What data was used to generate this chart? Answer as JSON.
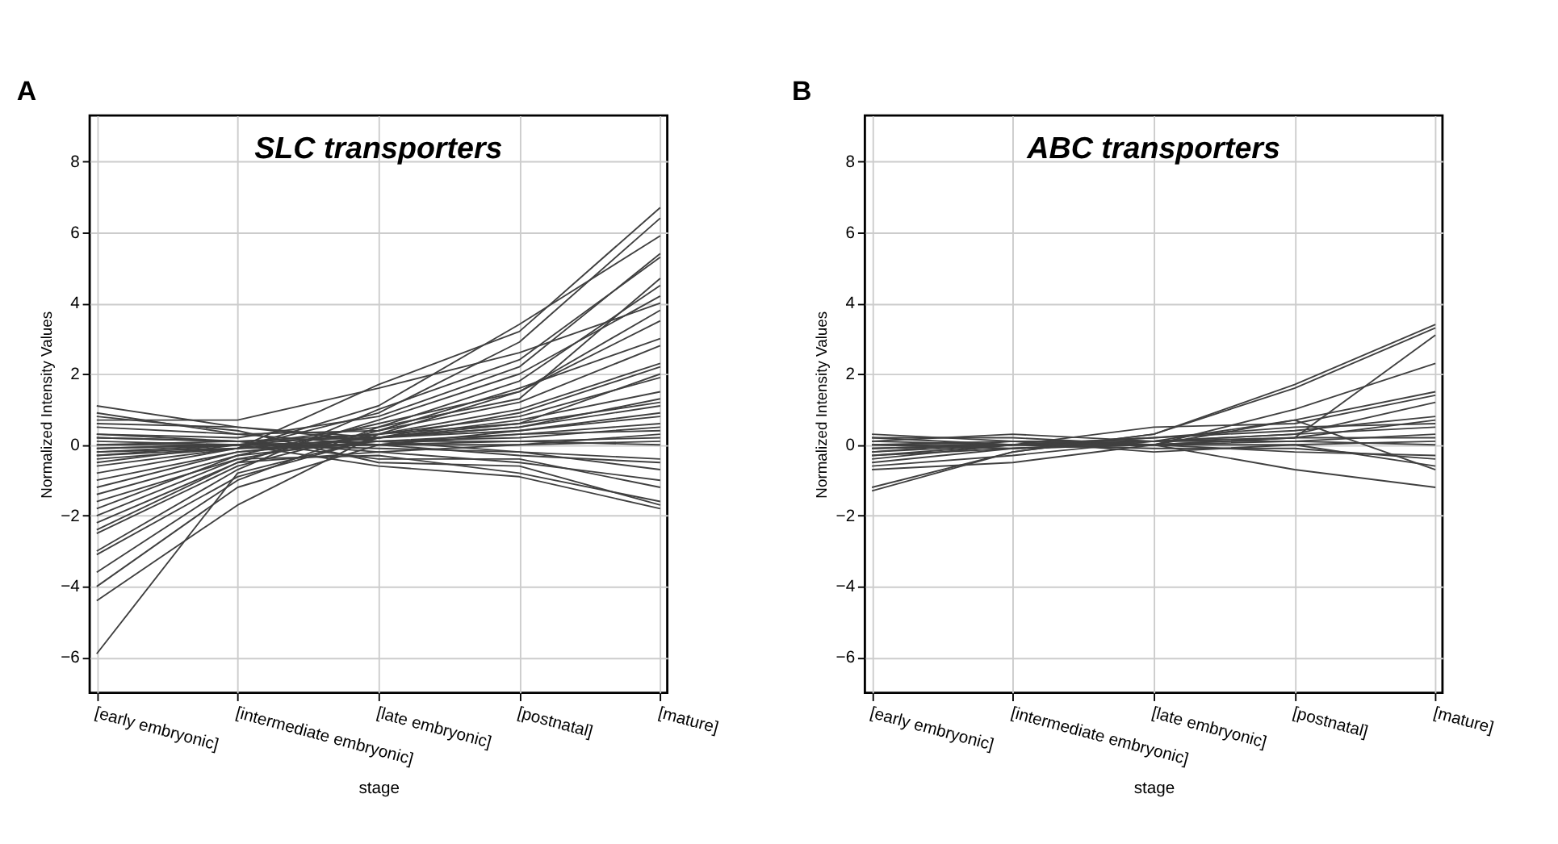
{
  "chart_data": [
    {
      "type": "line",
      "title": "SLC transporters",
      "annotations": [
        "A"
      ],
      "xlabel": "stage",
      "ylabel": "Normalized Intensity Values",
      "categories": [
        "[early embryonic]",
        "[intermediate embryonic]",
        "[late embryonic]",
        "[postnatal]",
        "[mature]"
      ],
      "ylim": [
        -7,
        9.3
      ],
      "yticks": [
        -6,
        -4,
        -2,
        0,
        2,
        4,
        6,
        8
      ],
      "grid": true,
      "legend": false,
      "marker": "none",
      "line_style": "solid",
      "series": [
        {
          "color": "#404040",
          "values": [
            -5.9,
            -0.8,
            0.2,
            0.6,
            1.2
          ]
        },
        {
          "color": "#404040",
          "values": [
            -4.4,
            -1.7,
            0.3,
            1.5,
            3.5
          ]
        },
        {
          "color": "#404040",
          "values": [
            -4.0,
            -1.2,
            0.0,
            0.4,
            0.8
          ]
        },
        {
          "color": "#404040",
          "values": [
            -3.6,
            -1.0,
            0.5,
            1.8,
            4.5
          ]
        },
        {
          "color": "#404040",
          "values": [
            -3.1,
            -0.9,
            0.2,
            0.9,
            2.2
          ]
        },
        {
          "color": "#404040",
          "values": [
            -3.0,
            -0.7,
            1.0,
            2.4,
            5.3
          ]
        },
        {
          "color": "#404040",
          "values": [
            -2.5,
            -0.6,
            0.4,
            1.2,
            2.8
          ]
        },
        {
          "color": "#404040",
          "values": [
            -2.4,
            -0.5,
            0.7,
            2.0,
            4.2
          ]
        },
        {
          "color": "#404040",
          "values": [
            -2.2,
            -0.5,
            -0.2,
            -0.5,
            -1.0
          ]
        },
        {
          "color": "#404040",
          "values": [
            -2.0,
            -0.4,
            0.3,
            0.8,
            1.9
          ]
        },
        {
          "color": "#404040",
          "values": [
            -1.8,
            -0.3,
            0.1,
            0.2,
            0.5
          ]
        },
        {
          "color": "#404040",
          "values": [
            -1.6,
            -0.4,
            -0.3,
            -0.8,
            -1.6
          ]
        },
        {
          "color": "#404040",
          "values": [
            -1.4,
            -0.3,
            0.6,
            1.5,
            3.8
          ]
        },
        {
          "color": "#404040",
          "values": [
            -1.2,
            -0.2,
            0.2,
            0.5,
            1.3
          ]
        },
        {
          "color": "#404040",
          "values": [
            -1.0,
            -0.2,
            0.1,
            0.1,
            0.2
          ]
        },
        {
          "color": "#404040",
          "values": [
            -0.8,
            -0.1,
            1.7,
            3.2,
            6.7
          ]
        },
        {
          "color": "#404040",
          "values": [
            -0.6,
            -0.1,
            0.9,
            2.9,
            6.4
          ]
        },
        {
          "color": "#404040",
          "values": [
            -0.5,
            0.0,
            0.0,
            -0.3,
            -0.5
          ]
        },
        {
          "color": "#404040",
          "values": [
            -0.4,
            -0.1,
            1.1,
            3.4,
            5.9
          ]
        },
        {
          "color": "#404040",
          "values": [
            -0.3,
            0.0,
            -0.6,
            -0.9,
            -1.8
          ]
        },
        {
          "color": "#404040",
          "values": [
            -0.2,
            0.0,
            0.3,
            1.0,
            2.3
          ]
        },
        {
          "color": "#404040",
          "values": [
            -0.1,
            0.0,
            0.0,
            0.0,
            0.1
          ]
        },
        {
          "color": "#404040",
          "values": [
            0.0,
            0.1,
            -0.4,
            -0.4,
            -1.2
          ]
        },
        {
          "color": "#404040",
          "values": [
            0.1,
            0.0,
            0.5,
            1.3,
            4.7
          ]
        },
        {
          "color": "#404040",
          "values": [
            0.2,
            0.1,
            0.2,
            0.4,
            0.9
          ]
        },
        {
          "color": "#404040",
          "values": [
            0.3,
            0.2,
            0.8,
            2.2,
            5.4
          ]
        },
        {
          "color": "#404040",
          "values": [
            0.3,
            0.1,
            -0.2,
            0.0,
            0.3
          ]
        },
        {
          "color": "#404040",
          "values": [
            0.5,
            0.3,
            0.4,
            1.6,
            3.0
          ]
        },
        {
          "color": "#404040",
          "values": [
            0.6,
            0.5,
            0.1,
            -0.2,
            -0.7
          ]
        },
        {
          "color": "#404040",
          "values": [
            0.7,
            0.7,
            1.6,
            2.6,
            4.0
          ]
        },
        {
          "color": "#404040",
          "values": [
            0.8,
            0.4,
            -0.5,
            -0.6,
            -1.7
          ]
        },
        {
          "color": "#404040",
          "values": [
            0.9,
            0.3,
            0.0,
            0.3,
            0.6
          ]
        },
        {
          "color": "#404040",
          "values": [
            1.1,
            0.5,
            0.2,
            0.7,
            1.5
          ]
        },
        {
          "color": "#404040",
          "values": [
            -0.2,
            -0.1,
            0.0,
            0.1,
            0.0
          ]
        },
        {
          "color": "#404040",
          "values": [
            -0.3,
            -0.1,
            0.2,
            0.5,
            1.1
          ]
        },
        {
          "color": "#404040",
          "values": [
            0.0,
            0.0,
            0.1,
            0.3,
            0.4
          ]
        },
        {
          "color": "#404040",
          "values": [
            -0.1,
            0.0,
            -0.1,
            -0.2,
            -0.4
          ]
        },
        {
          "color": "#404040",
          "values": [
            0.2,
            0.1,
            0.3,
            0.6,
            2.0
          ]
        }
      ]
    },
    {
      "type": "line",
      "title": "ABC transporters",
      "annotations": [
        "B"
      ],
      "xlabel": "stage",
      "ylabel": "Normalized Intensity Values",
      "categories": [
        "[early embryonic]",
        "[intermediate embryonic]",
        "[late embryonic]",
        "[postnatal]",
        "[mature]"
      ],
      "ylim": [
        -7,
        9.3
      ],
      "yticks": [
        -6,
        -4,
        -2,
        0,
        2,
        4,
        6,
        8
      ],
      "grid": true,
      "legend": false,
      "marker": "none",
      "line_style": "solid",
      "series": [
        {
          "color": "#404040",
          "values": [
            -1.2,
            -0.2,
            0.3,
            1.6,
            3.3
          ]
        },
        {
          "color": "#404040",
          "values": [
            -1.3,
            -0.2,
            0.3,
            1.7,
            3.4
          ]
        },
        {
          "color": "#404040",
          "values": [
            -0.7,
            -0.5,
            0.0,
            1.0,
            2.3
          ]
        },
        {
          "color": "#404040",
          "values": [
            -0.6,
            -0.3,
            0.1,
            0.2,
            3.1
          ]
        },
        {
          "color": "#404040",
          "values": [
            -0.5,
            -0.1,
            0.0,
            0.7,
            1.5
          ]
        },
        {
          "color": "#404040",
          "values": [
            -0.4,
            0.0,
            0.5,
            0.6,
            1.4
          ]
        },
        {
          "color": "#404040",
          "values": [
            -0.3,
            0.0,
            0.1,
            0.3,
            1.2
          ]
        },
        {
          "color": "#404040",
          "values": [
            -0.2,
            0.1,
            0.0,
            -0.7,
            -1.2
          ]
        },
        {
          "color": "#404040",
          "values": [
            -0.1,
            0.0,
            0.2,
            0.4,
            0.8
          ]
        },
        {
          "color": "#404040",
          "values": [
            0.0,
            0.1,
            -0.2,
            0.0,
            -0.6
          ]
        },
        {
          "color": "#404040",
          "values": [
            0.1,
            0.3,
            0.1,
            0.7,
            -0.7
          ]
        },
        {
          "color": "#404040",
          "values": [
            0.2,
            0.2,
            0.0,
            0.2,
            0.7
          ]
        },
        {
          "color": "#404040",
          "values": [
            0.3,
            0.1,
            0.1,
            0.1,
            0.3
          ]
        },
        {
          "color": "#404040",
          "values": [
            0.2,
            0.0,
            -0.1,
            -0.1,
            -0.4
          ]
        },
        {
          "color": "#404040",
          "values": [
            -0.1,
            0.0,
            0.0,
            0.2,
            0.2
          ]
        },
        {
          "color": "#404040",
          "values": [
            0.0,
            -0.1,
            0.1,
            0.3,
            0.5
          ]
        },
        {
          "color": "#404040",
          "values": [
            -0.3,
            -0.1,
            0.0,
            0.0,
            0.1
          ]
        },
        {
          "color": "#404040",
          "values": [
            0.1,
            0.0,
            0.0,
            -0.2,
            -0.3
          ]
        },
        {
          "color": "#404040",
          "values": [
            -0.2,
            0.0,
            0.2,
            0.5,
            0.6
          ]
        },
        {
          "color": "#404040",
          "values": [
            0.0,
            0.0,
            0.0,
            0.1,
            0.0
          ]
        }
      ]
    }
  ]
}
